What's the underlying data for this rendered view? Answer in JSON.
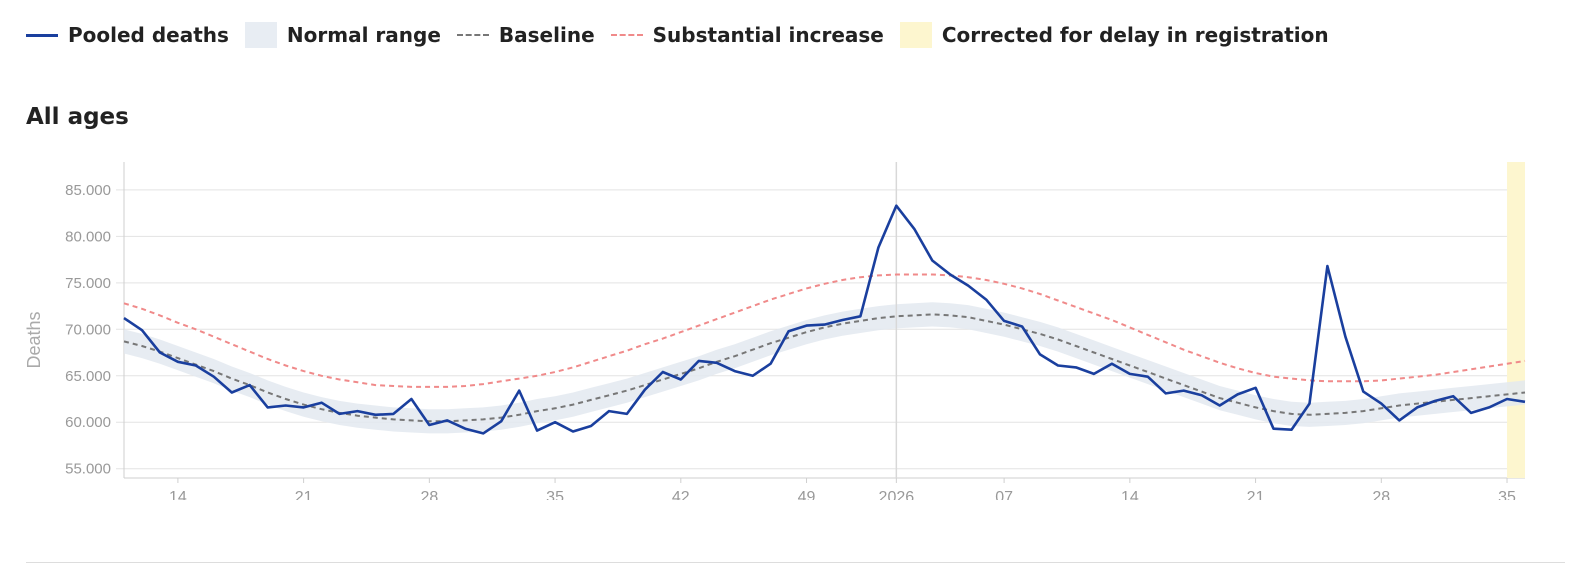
{
  "legend": [
    {
      "label": "Pooled deaths",
      "swatch": "line",
      "color": "#1a3f9e"
    },
    {
      "label": "Normal range",
      "swatch": "box",
      "color": "#e8edf3"
    },
    {
      "label": "Baseline",
      "swatch": "dash",
      "color": "#777777"
    },
    {
      "label": "Substantial increase",
      "swatch": "dash-red",
      "color": "#f08a8a"
    },
    {
      "label": "Corrected for delay in registration",
      "swatch": "box",
      "color": "#fdf6cf"
    }
  ],
  "subtitle": "All ages",
  "chart_data": {
    "type": "line",
    "ylabel": "Deaths",
    "ylim": [
      54000,
      88000
    ],
    "yticks": [
      55000,
      60000,
      65000,
      70000,
      75000,
      80000,
      85000
    ],
    "ytick_labels": [
      "55.000",
      "60.000",
      "65.000",
      "70.000",
      "75.000",
      "80.000",
      "85.000"
    ],
    "xtick_labels": [
      "14",
      "21",
      "28",
      "35",
      "42",
      "49",
      "2026",
      "07",
      "14",
      "21",
      "28",
      "35"
    ],
    "grid": true,
    "year_marker_label": "2026",
    "corrected_from_index": 77,
    "series": [
      {
        "name": "Pooled deaths",
        "values": [
          71200,
          69900,
          67500,
          66500,
          66100,
          64900,
          63200,
          64000,
          61600,
          61800,
          61600,
          62100,
          60900,
          61200,
          60800,
          60900,
          62500,
          59700,
          60200,
          59300,
          58800,
          60100,
          63400,
          59100,
          60000,
          59000,
          59600,
          61200,
          60900,
          63500,
          65400,
          64600,
          66600,
          66400,
          65500,
          65000,
          66300,
          69800,
          70400,
          70500,
          71000,
          71400,
          78800,
          83300,
          80800,
          77400,
          75900,
          74700,
          73200,
          70900,
          70300,
          67300,
          66100,
          65900,
          65200,
          66300,
          65200,
          64900,
          63100,
          63400,
          62900,
          61800,
          63000,
          63700,
          59300,
          59200,
          62000,
          76800,
          69200,
          63300,
          62000,
          60200,
          61600,
          62300,
          62800,
          61000,
          61600,
          62500,
          62200
        ]
      },
      {
        "name": "Baseline",
        "values": [
          68700,
          68200,
          67600,
          66900,
          66200,
          65500,
          64700,
          64000,
          63200,
          62500,
          61900,
          61400,
          61000,
          60700,
          60500,
          60300,
          60200,
          60100,
          60100,
          60200,
          60300,
          60500,
          60800,
          61200,
          61500,
          61900,
          62400,
          62900,
          63400,
          64000,
          64600,
          65200,
          65800,
          66500,
          67100,
          67800,
          68500,
          69100,
          69700,
          70200,
          70600,
          70900,
          71200,
          71400,
          71500,
          71600,
          71500,
          71300,
          70900,
          70500,
          70000,
          69500,
          68900,
          68200,
          67500,
          66800,
          66100,
          65400,
          64700,
          64000,
          63300,
          62600,
          62100,
          61600,
          61200,
          60900,
          60800,
          60900,
          61000,
          61200,
          61500,
          61800,
          62000,
          62200,
          62400,
          62600,
          62800,
          63000,
          63200
        ]
      },
      {
        "name": "Substantial increase",
        "values": [
          72800,
          72200,
          71500,
          70700,
          70000,
          69200,
          68400,
          67600,
          66800,
          66100,
          65500,
          65000,
          64600,
          64300,
          64000,
          63900,
          63800,
          63800,
          63800,
          63900,
          64100,
          64400,
          64700,
          65000,
          65400,
          65900,
          66500,
          67100,
          67700,
          68400,
          69000,
          69700,
          70400,
          71100,
          71800,
          72500,
          73200,
          73800,
          74400,
          74900,
          75300,
          75600,
          75800,
          75900,
          75900,
          75900,
          75800,
          75600,
          75300,
          74900,
          74400,
          73800,
          73100,
          72400,
          71700,
          71000,
          70200,
          69400,
          68600,
          67800,
          67100,
          66400,
          65800,
          65300,
          64900,
          64700,
          64500,
          64400,
          64400,
          64400,
          64500,
          64700,
          64900,
          65100,
          65400,
          65700,
          66000,
          66300,
          66600
        ]
      },
      {
        "name": "Normal range",
        "values": [
          2600,
          2600,
          2600,
          2600,
          2600,
          2600,
          2600,
          2600,
          2600,
          2600,
          2600,
          2600,
          2600,
          2600,
          2600,
          2600,
          2600,
          2600,
          2600,
          2600,
          2600,
          2600,
          2600,
          2600,
          2600,
          2600,
          2600,
          2600,
          2600,
          2600,
          2600,
          2600,
          2600,
          2600,
          2600,
          2600,
          2600,
          2600,
          2600,
          2600,
          2600,
          2600,
          2600,
          2600,
          2600,
          2600,
          2600,
          2600,
          2600,
          2600,
          2600,
          2600,
          2600,
          2600,
          2600,
          2600,
          2600,
          2600,
          2600,
          2600,
          2600,
          2600,
          2600,
          2600,
          2600,
          2600,
          2600,
          2600,
          2600,
          2600,
          2600,
          2600,
          2600,
          2600,
          2600,
          2600,
          2600,
          2600,
          2600
        ]
      }
    ]
  }
}
